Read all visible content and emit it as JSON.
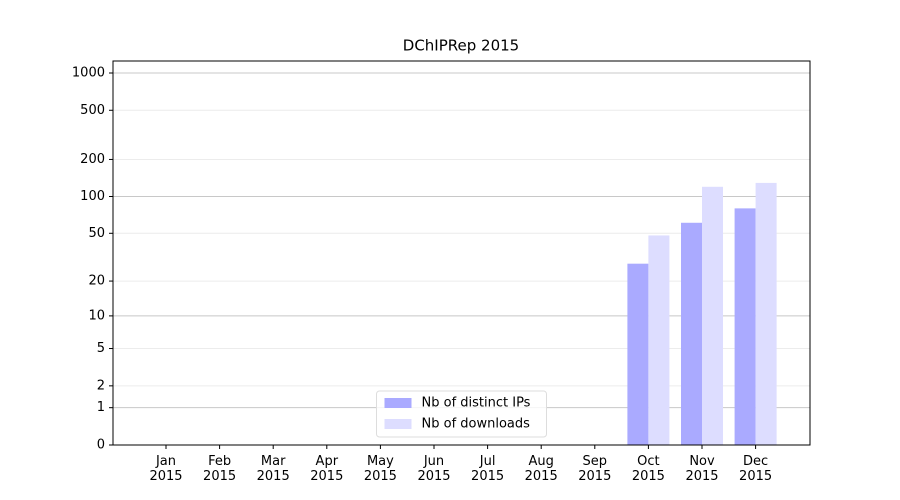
{
  "chart_data": {
    "type": "bar",
    "title": "DChIPRep 2015",
    "categories": [
      "Jan 2015",
      "Feb 2015",
      "Mar 2015",
      "Apr 2015",
      "May 2015",
      "Jun 2015",
      "Jul 2015",
      "Aug 2015",
      "Sep 2015",
      "Oct 2015",
      "Nov 2015",
      "Dec 2015"
    ],
    "series": [
      {
        "name": "Nb of distinct IPs",
        "color": "#aaaaff",
        "values": [
          0,
          0,
          0,
          0,
          0,
          0,
          0,
          0,
          0,
          28,
          61,
          80
        ]
      },
      {
        "name": "Nb of downloads",
        "color": "#ddddff",
        "values": [
          0,
          0,
          0,
          0,
          0,
          0,
          0,
          0,
          0,
          48,
          120,
          129
        ]
      }
    ],
    "yscale": "log1p",
    "ylim": [
      0,
      1250
    ],
    "yticks": [
      0,
      1,
      2,
      5,
      10,
      20,
      50,
      100,
      200,
      500,
      1000
    ],
    "grid": true,
    "legend": "lower center"
  }
}
